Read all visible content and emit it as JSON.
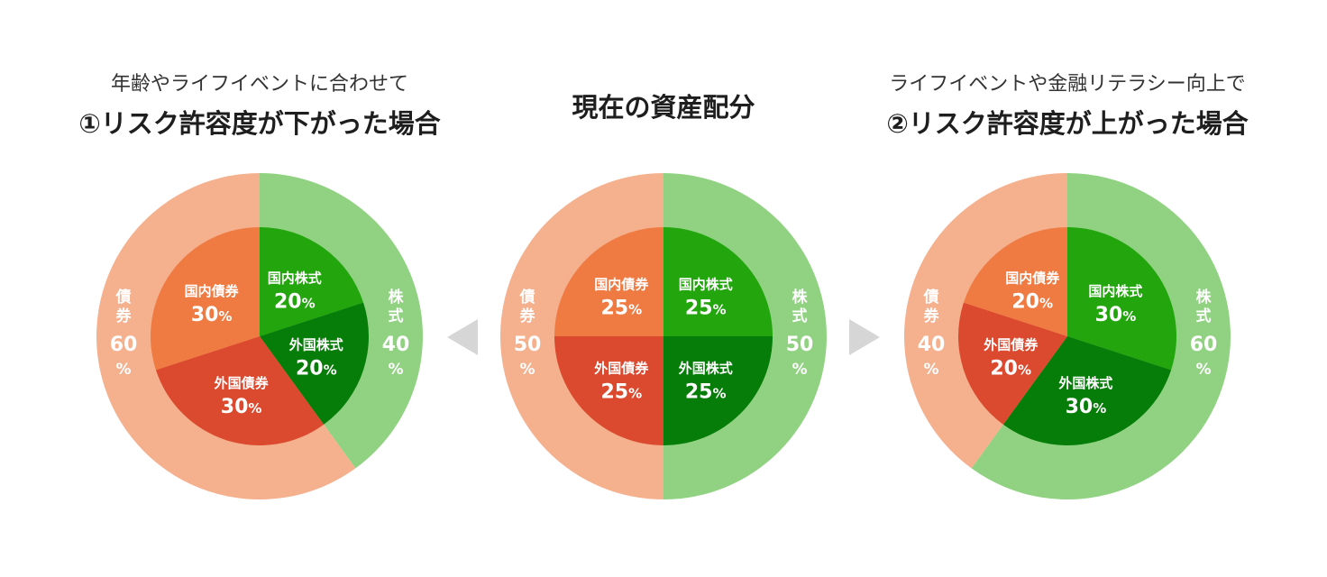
{
  "headers": {
    "left_subtitle": "年齢やライフイベントに合わせて",
    "left_title": "①リスク許容度が下がった場合",
    "center_title": "現在の資産配分",
    "right_subtitle": "ライフイベントや金融リテラシー向上で",
    "right_title": "②リスク許容度が上がった場合"
  },
  "colors": {
    "outer_bonds": "#f5b08e",
    "outer_stocks": "#90d282",
    "domestic_bonds": "#ef7b43",
    "foreign_bonds": "#db4a2f",
    "domestic_stocks": "#22a50d",
    "foreign_stocks": "#067d09",
    "arrow": "#d6d6d6",
    "label": "#ffffff"
  },
  "chart_data": [
    {
      "type": "pie",
      "name": "①リスク許容度が下がった場合",
      "outer": [
        {
          "label": "株式",
          "value": 40,
          "text": "40%",
          "color_key": "outer_stocks"
        },
        {
          "label": "債券",
          "value": 60,
          "text": "60%",
          "color_key": "outer_bonds"
        }
      ],
      "inner": [
        {
          "label": "国内株式",
          "value": 20,
          "text": "20%",
          "color_key": "domestic_stocks"
        },
        {
          "label": "外国株式",
          "value": 20,
          "text": "20%",
          "color_key": "foreign_stocks"
        },
        {
          "label": "外国債券",
          "value": 30,
          "text": "30%",
          "color_key": "foreign_bonds"
        },
        {
          "label": "国内債券",
          "value": 30,
          "text": "30%",
          "color_key": "domestic_bonds"
        }
      ]
    },
    {
      "type": "pie",
      "name": "現在の資産配分",
      "outer": [
        {
          "label": "株式",
          "value": 50,
          "text": "50%",
          "color_key": "outer_stocks"
        },
        {
          "label": "債券",
          "value": 50,
          "text": "50%",
          "color_key": "outer_bonds"
        }
      ],
      "inner": [
        {
          "label": "国内株式",
          "value": 25,
          "text": "25%",
          "color_key": "domestic_stocks"
        },
        {
          "label": "外国株式",
          "value": 25,
          "text": "25%",
          "color_key": "foreign_stocks"
        },
        {
          "label": "外国債券",
          "value": 25,
          "text": "25%",
          "color_key": "foreign_bonds"
        },
        {
          "label": "国内債券",
          "value": 25,
          "text": "25%",
          "color_key": "domestic_bonds"
        }
      ]
    },
    {
      "type": "pie",
      "name": "②リスク許容度が上がった場合",
      "outer": [
        {
          "label": "株式",
          "value": 60,
          "text": "60%",
          "color_key": "outer_stocks"
        },
        {
          "label": "債券",
          "value": 40,
          "text": "40%",
          "color_key": "outer_bonds"
        }
      ],
      "inner": [
        {
          "label": "国内株式",
          "value": 30,
          "text": "30%",
          "color_key": "domestic_stocks"
        },
        {
          "label": "外国株式",
          "value": 30,
          "text": "30%",
          "color_key": "foreign_stocks"
        },
        {
          "label": "外国債券",
          "value": 20,
          "text": "20%",
          "color_key": "foreign_bonds"
        },
        {
          "label": "国内債券",
          "value": 20,
          "text": "20%",
          "color_key": "domestic_bonds"
        }
      ]
    }
  ]
}
